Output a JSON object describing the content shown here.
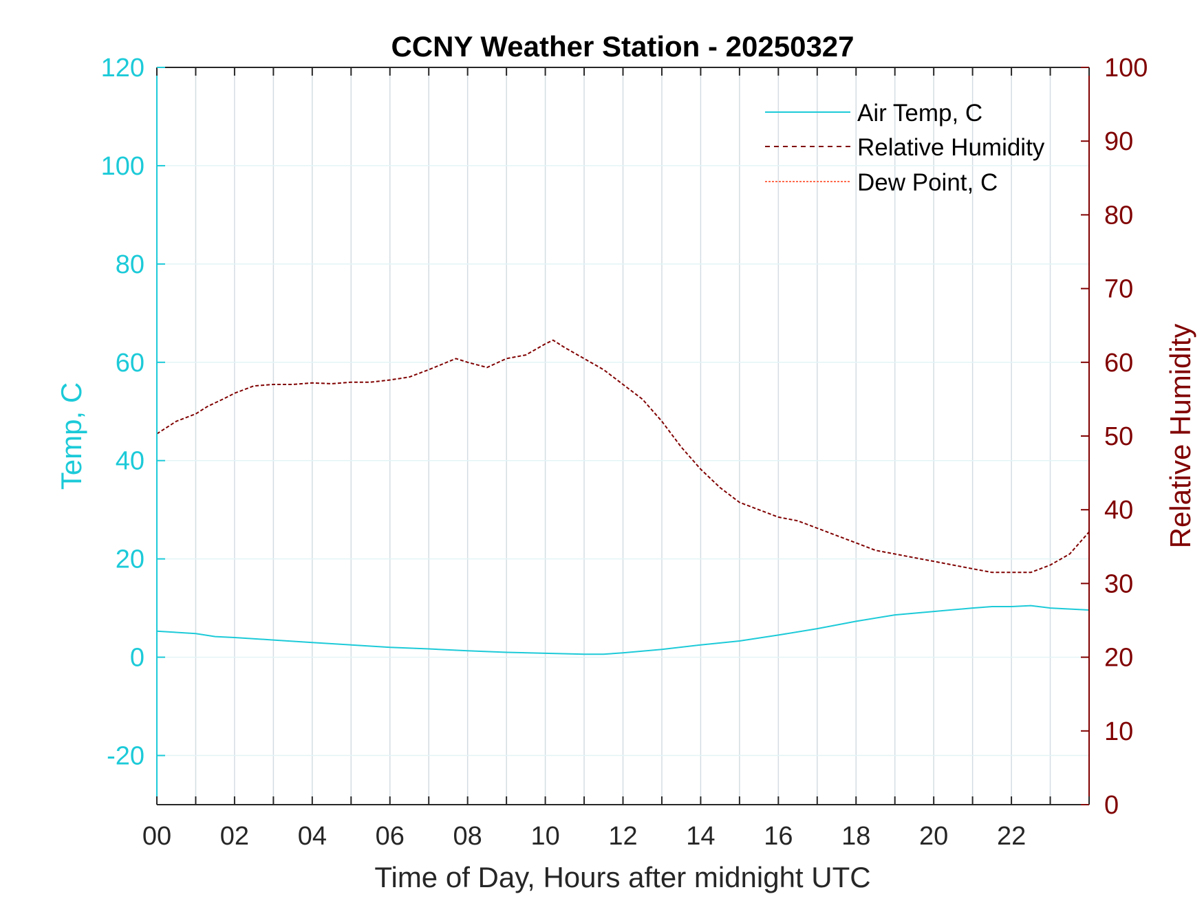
{
  "chart_data": {
    "type": "line",
    "title": "CCNY Weather Station - 20250327",
    "xlabel": "Time of Day, Hours after midnight UTC",
    "ylabel_left": "Temp, C",
    "ylabel_right": "Relative Humidity",
    "xlim": [
      0,
      24
    ],
    "ylim_left": [
      -30,
      120
    ],
    "ylim_right": [
      0,
      100
    ],
    "x_ticks": [
      0,
      2,
      4,
      6,
      8,
      10,
      12,
      14,
      16,
      18,
      20,
      22
    ],
    "x_tick_labels": [
      "00",
      "02",
      "04",
      "06",
      "08",
      "10",
      "12",
      "14",
      "16",
      "18",
      "20",
      "22"
    ],
    "y_left_ticks": [
      -20,
      0,
      20,
      40,
      60,
      80,
      100,
      120
    ],
    "y_left_tick_labels": [
      "-20",
      "0",
      "20",
      "40",
      "60",
      "80",
      "100",
      "120"
    ],
    "y_right_ticks": [
      0,
      10,
      20,
      30,
      40,
      50,
      60,
      70,
      80,
      90,
      100
    ],
    "y_right_tick_labels": [
      "0",
      "10",
      "20",
      "30",
      "40",
      "50",
      "60",
      "70",
      "80",
      "90",
      "100"
    ],
    "grid": true,
    "legend_position": "top-right",
    "colors": {
      "temp": "#1ccad8",
      "humidity": "#800000",
      "dewpoint": "#ff6a4d",
      "axis": "#262626",
      "grid": "#d4dde3"
    },
    "series": [
      {
        "name": "Air Temp, C",
        "axis": "left",
        "style": "solid",
        "x": [
          0,
          1,
          1.5,
          2,
          3,
          4,
          5,
          6,
          7,
          8,
          9,
          10,
          11,
          11.5,
          12,
          13,
          14,
          15,
          16,
          17,
          18,
          19,
          20,
          21,
          21.5,
          22,
          22.5,
          23,
          24
        ],
        "y": [
          5.3,
          4.8,
          4.2,
          4.0,
          3.5,
          3.0,
          2.5,
          2.0,
          1.7,
          1.3,
          1.0,
          0.8,
          0.6,
          0.6,
          0.9,
          1.6,
          2.5,
          3.3,
          4.5,
          5.8,
          7.3,
          8.6,
          9.3,
          10.0,
          10.3,
          10.3,
          10.5,
          10.0,
          9.6
        ]
      },
      {
        "name": "Relative Humidity",
        "axis": "right",
        "style": "dashed",
        "x": [
          0,
          0.5,
          1.0,
          1.3,
          1.7,
          2.0,
          2.5,
          3.0,
          3.5,
          4.0,
          4.5,
          5.0,
          5.5,
          6.0,
          6.5,
          7.0,
          7.7,
          8.0,
          8.5,
          9.0,
          9.5,
          10.0,
          10.2,
          10.5,
          11.0,
          11.5,
          12.0,
          12.5,
          13.0,
          13.5,
          14.0,
          14.5,
          15.0,
          15.5,
          16.0,
          16.5,
          17.0,
          17.5,
          18.0,
          18.5,
          19.0,
          19.5,
          20.0,
          20.5,
          21.0,
          21.5,
          22.0,
          22.5,
          23.0,
          23.5,
          24.0
        ],
        "y": [
          50.3,
          52.0,
          53.0,
          54.0,
          55.0,
          55.8,
          56.8,
          57.0,
          57.0,
          57.2,
          57.1,
          57.3,
          57.3,
          57.6,
          58.0,
          59.0,
          60.5,
          60.0,
          59.3,
          60.5,
          61.0,
          62.5,
          63.0,
          62.0,
          60.5,
          59.0,
          57.0,
          55.0,
          52.0,
          48.5,
          45.5,
          43.0,
          41.0,
          40.0,
          39.0,
          38.5,
          37.5,
          36.5,
          35.5,
          34.5,
          34.0,
          33.5,
          33.0,
          32.5,
          32.0,
          31.5,
          31.5,
          31.5,
          32.5,
          34.0,
          37.0
        ]
      },
      {
        "name": "Dew Point, C",
        "axis": "left",
        "style": "dotted",
        "x": [],
        "y": []
      }
    ]
  }
}
